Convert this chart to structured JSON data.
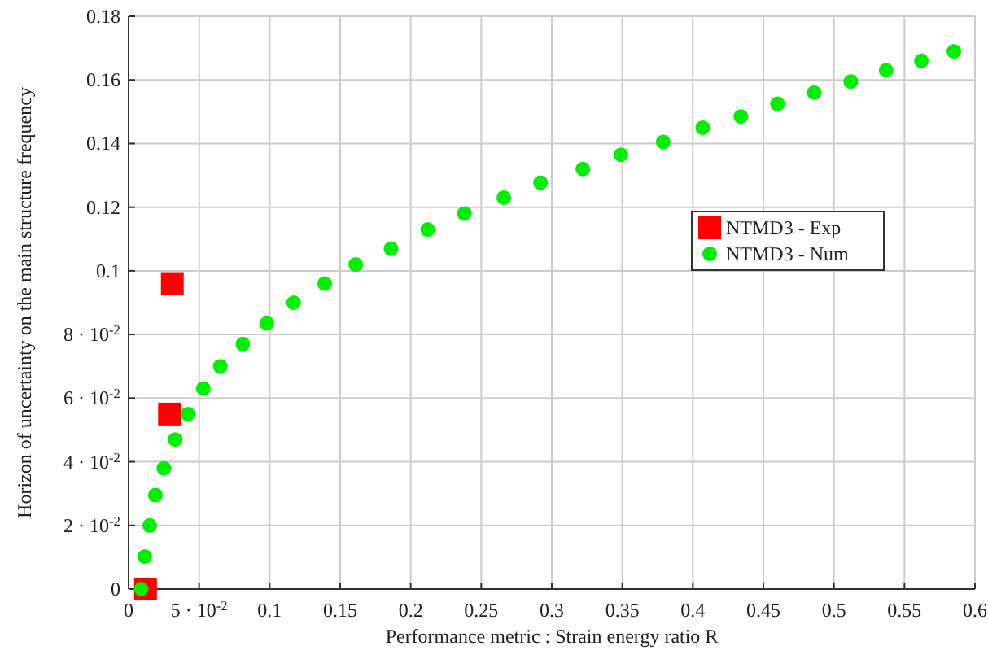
{
  "chart_data": {
    "type": "scatter",
    "xlabel": "Performance metric : Strain energy ratio R",
    "ylabel": "Horizon of uncertainty on the main structure frequency",
    "xlim": [
      0,
      0.6
    ],
    "ylim": [
      0,
      0.18
    ],
    "xticks": [
      0,
      {
        "value": 0.05,
        "label": "5 · 10$^{-2}$"
      },
      0.1,
      0.15,
      0.2,
      0.25,
      0.3,
      0.35,
      0.4,
      0.45,
      0.5,
      0.55,
      0.6
    ],
    "yticks": [
      0,
      {
        "value": 0.02,
        "label": "2 · 10$^{-2}$"
      },
      {
        "value": 0.04,
        "label": "4 · 10$^{-2}$"
      },
      {
        "value": 0.06,
        "label": "6 · 10$^{-2}$"
      },
      {
        "value": 0.08,
        "label": "8 · 10$^{-2}$"
      },
      0.1,
      0.12,
      0.14,
      0.16,
      0.18
    ],
    "grid": true,
    "legend": "right",
    "series": [
      {
        "name": "NTMD3 - Exp",
        "color": "#ff0000",
        "marker": "square",
        "x": [
          0.012,
          0.029,
          0.031
        ],
        "values": [
          0,
          0.055,
          0.096
        ]
      },
      {
        "name": "NTMD3 - Num",
        "color": "#00ee00",
        "marker": "circle",
        "x": [
          0.009,
          0.0115,
          0.015,
          0.019,
          0.025,
          0.033,
          0.042,
          0.053,
          0.065,
          0.081,
          0.098,
          0.117,
          0.139,
          0.161,
          0.186,
          0.212,
          0.238,
          0.266,
          0.292,
          0.322,
          0.349,
          0.379,
          0.407,
          0.434,
          0.46,
          0.486,
          0.512,
          0.537,
          0.562,
          0.585
        ],
        "values": [
          0,
          0.0102,
          0.02,
          0.0295,
          0.038,
          0.047,
          0.055,
          0.063,
          0.07,
          0.077,
          0.0835,
          0.09,
          0.096,
          0.102,
          0.107,
          0.113,
          0.118,
          0.123,
          0.1277,
          0.132,
          0.1365,
          0.1405,
          0.145,
          0.1485,
          0.1525,
          0.156,
          0.1595,
          0.163,
          0.166,
          0.169
        ]
      }
    ]
  }
}
